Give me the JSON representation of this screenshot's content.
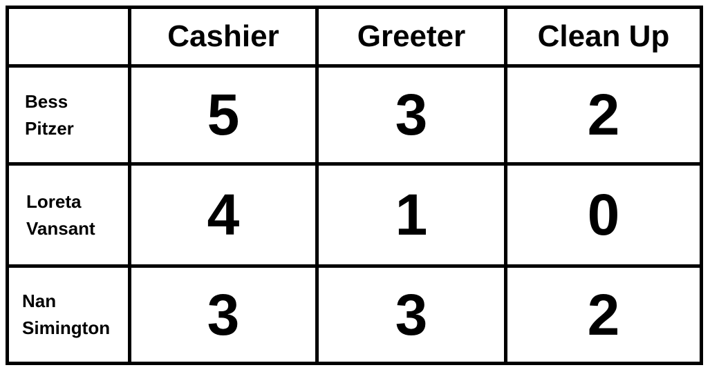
{
  "chart_data": {
    "type": "table",
    "columns": [
      "Cashier",
      "Greeter",
      "Clean Up"
    ],
    "rows": [
      {
        "name_line1": "Bess",
        "name_line2": "Pitzer",
        "values": [
          5,
          3,
          2
        ]
      },
      {
        "name_line1": "Loreta",
        "name_line2": "Vansant",
        "values": [
          4,
          1,
          0
        ]
      },
      {
        "name_line1": "Nan",
        "name_line2": "Simington",
        "values": [
          3,
          3,
          2
        ]
      }
    ]
  }
}
